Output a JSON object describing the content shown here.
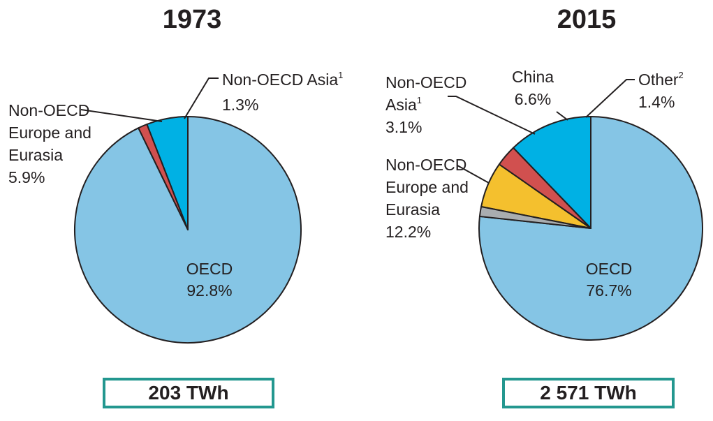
{
  "colors": {
    "oecd": "#85c5e5",
    "europe_eurasia": "#00b1e4",
    "asia": "#d1504f",
    "china": "#f4c02e",
    "other": "#a9adb0",
    "outline": "#231f20",
    "box_border": "#23978f"
  },
  "chart_data": [
    {
      "type": "pie",
      "title": "1973",
      "total": "203 TWh",
      "slices": [
        {
          "key": "oecd",
          "name": "OECD",
          "value": 92.8,
          "label": "92.8%"
        },
        {
          "key": "europe_eurasia",
          "name": "Non-OECD Europe and Eurasia",
          "value": 5.9,
          "label": "5.9%"
        },
        {
          "key": "asia",
          "name": "Non-OECD Asia",
          "value": 1.3,
          "label": "1.3%"
        }
      ]
    },
    {
      "type": "pie",
      "title": "2015",
      "total": "2 571 TWh",
      "slices": [
        {
          "key": "oecd",
          "name": "OECD",
          "value": 76.7,
          "label": "76.7%"
        },
        {
          "key": "europe_eurasia",
          "name": "Non-OECD Europe and Eurasia",
          "value": 12.2,
          "label": "12.2%"
        },
        {
          "key": "asia",
          "name": "Non-OECD Asia",
          "value": 3.1,
          "label": "3.1%"
        },
        {
          "key": "china",
          "name": "China",
          "value": 6.6,
          "label": "6.6%"
        },
        {
          "key": "other",
          "name": "Other",
          "value": 1.4,
          "label": "1.4%"
        }
      ]
    }
  ],
  "labels": {
    "c1": {
      "oecd": [
        "OECD",
        "92.8%"
      ],
      "europe": [
        "Non-OECD",
        "Europe and",
        "Eurasia",
        "5.9%"
      ],
      "asia": {
        "name": "Non-OECD Asia",
        "sup": "1",
        "pct": "1.3%"
      }
    },
    "c2": {
      "oecd": [
        "OECD",
        "76.7%"
      ],
      "europe": [
        "Non-OECD",
        "Europe and",
        "Eurasia",
        "12.2%"
      ],
      "asia": {
        "line1": "Non-OECD",
        "line2": "Asia",
        "sup": "1",
        "pct": "3.1%"
      },
      "china": [
        "China",
        "6.6%"
      ],
      "other": {
        "name": "Other",
        "sup": "2",
        "pct": "1.4%"
      }
    }
  }
}
